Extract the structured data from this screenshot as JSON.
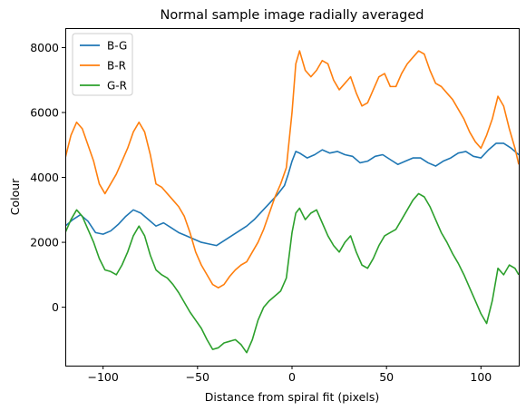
{
  "chart_data": {
    "type": "line",
    "title": "Normal sample image radially averaged",
    "xlabel": "Distance from spiral fit (pixels)",
    "ylabel": "Colour",
    "xlim": [
      -120,
      120
    ],
    "ylim": [
      -1800,
      8600
    ],
    "xticks": [
      -100,
      -50,
      0,
      50,
      100
    ],
    "yticks": [
      0,
      2000,
      4000,
      6000,
      8000
    ],
    "grid": false,
    "legend_position": "top-left",
    "series": [
      {
        "name": "B-G",
        "color": "#1f77b4",
        "points": [
          [
            -120,
            2500
          ],
          [
            -116,
            2700
          ],
          [
            -112,
            2850
          ],
          [
            -108,
            2650
          ],
          [
            -104,
            2300
          ],
          [
            -100,
            2250
          ],
          [
            -96,
            2350
          ],
          [
            -92,
            2550
          ],
          [
            -88,
            2800
          ],
          [
            -84,
            3000
          ],
          [
            -80,
            2900
          ],
          [
            -76,
            2700
          ],
          [
            -72,
            2500
          ],
          [
            -68,
            2600
          ],
          [
            -64,
            2450
          ],
          [
            -60,
            2300
          ],
          [
            -56,
            2200
          ],
          [
            -52,
            2100
          ],
          [
            -48,
            2000
          ],
          [
            -44,
            1950
          ],
          [
            -40,
            1900
          ],
          [
            -36,
            2050
          ],
          [
            -32,
            2200
          ],
          [
            -28,
            2350
          ],
          [
            -24,
            2500
          ],
          [
            -20,
            2700
          ],
          [
            -16,
            2950
          ],
          [
            -12,
            3200
          ],
          [
            -8,
            3450
          ],
          [
            -4,
            3750
          ],
          [
            -2,
            4100
          ],
          [
            0,
            4500
          ],
          [
            2,
            4800
          ],
          [
            4,
            4750
          ],
          [
            8,
            4600
          ],
          [
            12,
            4700
          ],
          [
            16,
            4850
          ],
          [
            20,
            4750
          ],
          [
            24,
            4800
          ],
          [
            28,
            4700
          ],
          [
            32,
            4650
          ],
          [
            36,
            4450
          ],
          [
            40,
            4500
          ],
          [
            44,
            4650
          ],
          [
            48,
            4700
          ],
          [
            52,
            4550
          ],
          [
            56,
            4400
          ],
          [
            60,
            4500
          ],
          [
            64,
            4600
          ],
          [
            68,
            4600
          ],
          [
            72,
            4450
          ],
          [
            76,
            4350
          ],
          [
            80,
            4500
          ],
          [
            84,
            4600
          ],
          [
            88,
            4750
          ],
          [
            92,
            4800
          ],
          [
            96,
            4650
          ],
          [
            100,
            4600
          ],
          [
            104,
            4850
          ],
          [
            108,
            5050
          ],
          [
            112,
            5050
          ],
          [
            116,
            4900
          ],
          [
            120,
            4700
          ]
        ]
      },
      {
        "name": "B-R",
        "color": "#ff7f0e",
        "points": [
          [
            -120,
            4600
          ],
          [
            -117,
            5300
          ],
          [
            -114,
            5700
          ],
          [
            -111,
            5500
          ],
          [
            -108,
            5000
          ],
          [
            -105,
            4500
          ],
          [
            -102,
            3800
          ],
          [
            -99,
            3500
          ],
          [
            -96,
            3800
          ],
          [
            -93,
            4100
          ],
          [
            -90,
            4500
          ],
          [
            -87,
            4900
          ],
          [
            -84,
            5400
          ],
          [
            -81,
            5700
          ],
          [
            -78,
            5400
          ],
          [
            -75,
            4700
          ],
          [
            -72,
            3800
          ],
          [
            -69,
            3700
          ],
          [
            -66,
            3500
          ],
          [
            -63,
            3300
          ],
          [
            -60,
            3100
          ],
          [
            -57,
            2800
          ],
          [
            -54,
            2300
          ],
          [
            -51,
            1700
          ],
          [
            -48,
            1300
          ],
          [
            -45,
            1000
          ],
          [
            -42,
            700
          ],
          [
            -39,
            600
          ],
          [
            -36,
            700
          ],
          [
            -33,
            950
          ],
          [
            -30,
            1150
          ],
          [
            -27,
            1300
          ],
          [
            -24,
            1400
          ],
          [
            -21,
            1700
          ],
          [
            -18,
            2000
          ],
          [
            -15,
            2400
          ],
          [
            -12,
            2900
          ],
          [
            -9,
            3400
          ],
          [
            -6,
            3800
          ],
          [
            -3,
            4300
          ],
          [
            0,
            6000
          ],
          [
            2,
            7500
          ],
          [
            4,
            7900
          ],
          [
            7,
            7300
          ],
          [
            10,
            7100
          ],
          [
            13,
            7300
          ],
          [
            16,
            7600
          ],
          [
            19,
            7500
          ],
          [
            22,
            7000
          ],
          [
            25,
            6700
          ],
          [
            28,
            6900
          ],
          [
            31,
            7100
          ],
          [
            34,
            6600
          ],
          [
            37,
            6200
          ],
          [
            40,
            6300
          ],
          [
            43,
            6700
          ],
          [
            46,
            7100
          ],
          [
            49,
            7200
          ],
          [
            52,
            6800
          ],
          [
            55,
            6800
          ],
          [
            58,
            7200
          ],
          [
            61,
            7500
          ],
          [
            64,
            7700
          ],
          [
            67,
            7900
          ],
          [
            70,
            7800
          ],
          [
            73,
            7300
          ],
          [
            76,
            6900
          ],
          [
            79,
            6800
          ],
          [
            82,
            6600
          ],
          [
            85,
            6400
          ],
          [
            88,
            6100
          ],
          [
            91,
            5800
          ],
          [
            94,
            5400
          ],
          [
            97,
            5100
          ],
          [
            100,
            4900
          ],
          [
            103,
            5300
          ],
          [
            106,
            5800
          ],
          [
            109,
            6500
          ],
          [
            112,
            6200
          ],
          [
            115,
            5500
          ],
          [
            118,
            4900
          ],
          [
            120,
            4400
          ]
        ]
      },
      {
        "name": "G-R",
        "color": "#2ca02c",
        "points": [
          [
            -120,
            2300
          ],
          [
            -117,
            2700
          ],
          [
            -114,
            3000
          ],
          [
            -111,
            2800
          ],
          [
            -108,
            2400
          ],
          [
            -105,
            2000
          ],
          [
            -102,
            1500
          ],
          [
            -99,
            1150
          ],
          [
            -96,
            1100
          ],
          [
            -93,
            1000
          ],
          [
            -90,
            1300
          ],
          [
            -87,
            1700
          ],
          [
            -84,
            2200
          ],
          [
            -81,
            2500
          ],
          [
            -78,
            2200
          ],
          [
            -75,
            1600
          ],
          [
            -72,
            1150
          ],
          [
            -69,
            1000
          ],
          [
            -66,
            900
          ],
          [
            -63,
            700
          ],
          [
            -60,
            450
          ],
          [
            -57,
            150
          ],
          [
            -54,
            -150
          ],
          [
            -51,
            -400
          ],
          [
            -48,
            -650
          ],
          [
            -45,
            -1000
          ],
          [
            -42,
            -1300
          ],
          [
            -39,
            -1250
          ],
          [
            -36,
            -1100
          ],
          [
            -33,
            -1050
          ],
          [
            -30,
            -1000
          ],
          [
            -27,
            -1150
          ],
          [
            -24,
            -1400
          ],
          [
            -21,
            -1000
          ],
          [
            -18,
            -400
          ],
          [
            -15,
            0
          ],
          [
            -12,
            200
          ],
          [
            -9,
            350
          ],
          [
            -6,
            500
          ],
          [
            -3,
            900
          ],
          [
            0,
            2300
          ],
          [
            2,
            2900
          ],
          [
            4,
            3050
          ],
          [
            7,
            2700
          ],
          [
            10,
            2900
          ],
          [
            13,
            3000
          ],
          [
            16,
            2600
          ],
          [
            19,
            2200
          ],
          [
            22,
            1900
          ],
          [
            25,
            1700
          ],
          [
            28,
            2000
          ],
          [
            31,
            2200
          ],
          [
            34,
            1700
          ],
          [
            37,
            1300
          ],
          [
            40,
            1200
          ],
          [
            43,
            1500
          ],
          [
            46,
            1900
          ],
          [
            49,
            2200
          ],
          [
            52,
            2300
          ],
          [
            55,
            2400
          ],
          [
            58,
            2700
          ],
          [
            61,
            3000
          ],
          [
            64,
            3300
          ],
          [
            67,
            3500
          ],
          [
            70,
            3400
          ],
          [
            73,
            3100
          ],
          [
            76,
            2700
          ],
          [
            79,
            2300
          ],
          [
            82,
            2000
          ],
          [
            85,
            1650
          ],
          [
            88,
            1350
          ],
          [
            91,
            1000
          ],
          [
            94,
            600
          ],
          [
            97,
            200
          ],
          [
            100,
            -200
          ],
          [
            103,
            -500
          ],
          [
            106,
            200
          ],
          [
            109,
            1200
          ],
          [
            112,
            1000
          ],
          [
            115,
            1300
          ],
          [
            118,
            1200
          ],
          [
            120,
            1000
          ]
        ]
      }
    ]
  }
}
